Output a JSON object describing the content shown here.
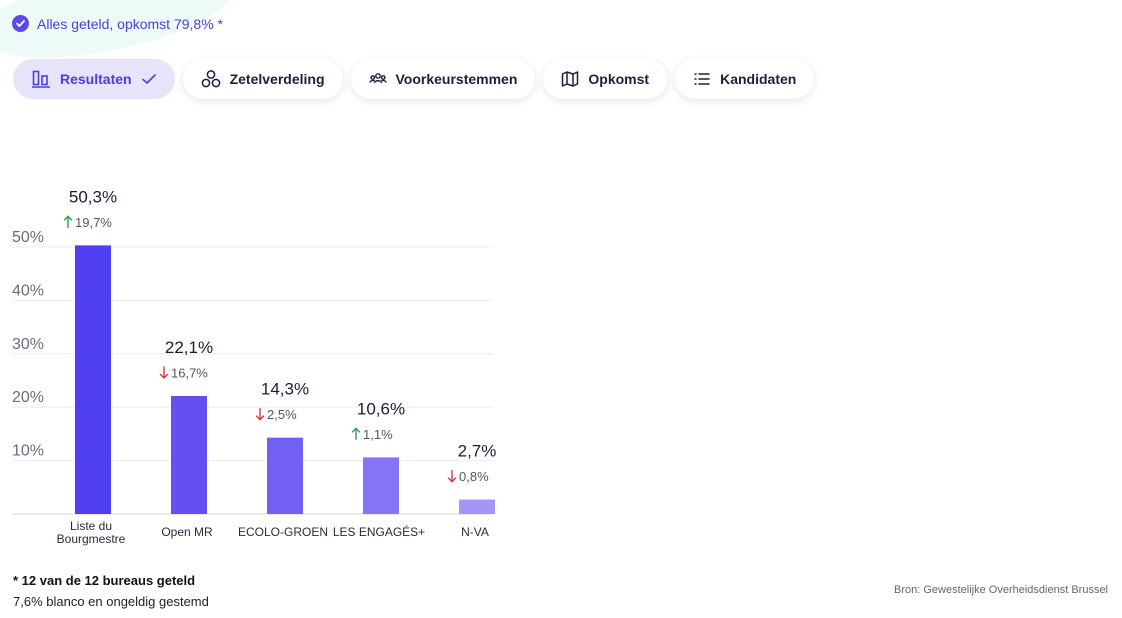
{
  "status": {
    "text": "Alles geteld, opkomst 79,8% *",
    "icon": "check-circle-icon"
  },
  "tabs": [
    {
      "label": "Resultaten",
      "icon": "bar-chart-icon",
      "active": true
    },
    {
      "label": "Zetelverdeling",
      "icon": "circles-icon",
      "active": false
    },
    {
      "label": "Voorkeurstemmen",
      "icon": "people-icon",
      "active": false
    },
    {
      "label": "Opkomst",
      "icon": "map-icon",
      "active": false
    },
    {
      "label": "Kandidaten",
      "icon": "list-icon",
      "active": false
    }
  ],
  "chart_data": {
    "type": "bar",
    "categories": [
      "Liste du Bourgmestre",
      "Open MR",
      "ECOLO-GROEN",
      "LES ENGAGÉS+",
      "N-VA"
    ],
    "values": [
      50.3,
      22.1,
      14.3,
      10.6,
      2.7
    ],
    "value_labels": [
      "50,3%",
      "22,1%",
      "14,3%",
      "10,6%",
      "2,7%"
    ],
    "changes": [
      {
        "text": "19,7%",
        "direction": "up"
      },
      {
        "text": "16,7%",
        "direction": "down"
      },
      {
        "text": "2,5%",
        "direction": "down"
      },
      {
        "text": "1,1%",
        "direction": "up"
      },
      {
        "text": "0,8%",
        "direction": "down"
      }
    ],
    "bar_colors": [
      "#4f3ff0",
      "#6450f2",
      "#7260f4",
      "#8474f6",
      "#a396f8"
    ],
    "up_color": "#2e9e4f",
    "down_color": "#d9363e",
    "yticks": [
      "10%",
      "20%",
      "30%",
      "40%",
      "50%"
    ],
    "ytick_values": [
      10,
      20,
      30,
      40,
      50
    ],
    "ylim": [
      0,
      50
    ],
    "grid": true
  },
  "footer": {
    "note_bold": "* 12 van de 12 bureaus geteld",
    "note": "7,6% blanco en ongeldig gestemd",
    "source": "Bron: Gewestelijke Overheidsdienst Brussel"
  }
}
